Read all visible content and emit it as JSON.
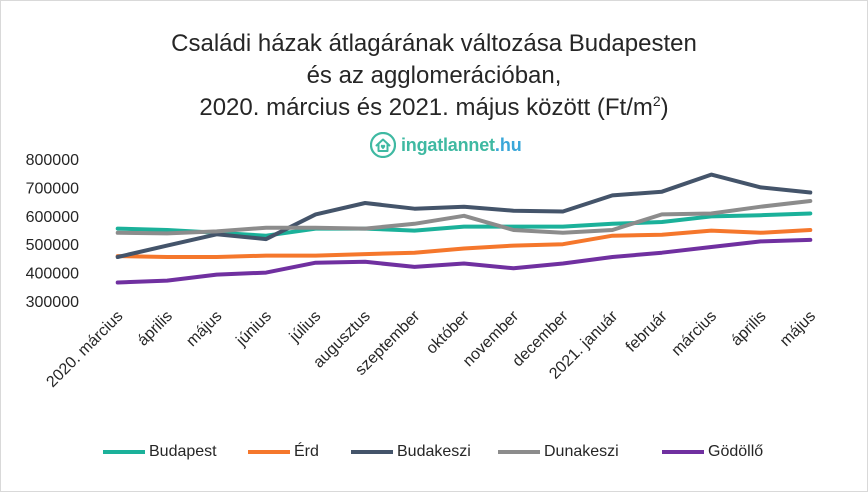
{
  "title": {
    "line1": "Családi házak átlagárának változása Budapesten",
    "line2": "és az agglomerációban,",
    "line3_main": "2020. március és 2021. május között (Ft/m",
    "line3_sup": "2",
    "line3_end": ")"
  },
  "brand": {
    "name": "ingatlannet",
    "tld": ".hu",
    "icon": "house-heart-icon",
    "color": "#3fb9a2"
  },
  "chart_data": {
    "type": "line",
    "title": "Családi házak átlagárának változása Budapesten és az agglomerációban, 2020. március és 2021. május között (Ft/m2)",
    "xlabel": "",
    "ylabel": "",
    "ylim": [
      300000,
      800000
    ],
    "yticks": [
      "800000",
      "700000",
      "600000",
      "500000",
      "400000",
      "300000"
    ],
    "yticks_values": [
      800000,
      700000,
      600000,
      500000,
      400000,
      300000
    ],
    "grid": false,
    "legend": "bottom",
    "categories": [
      "2020. március",
      "április",
      "május",
      "június",
      "július",
      "augusztus",
      "szeptember",
      "október",
      "november",
      "december",
      "2021. január",
      "február",
      "március",
      "április",
      "május"
    ],
    "series": [
      {
        "name": "Budapest",
        "color": "#1bb19a",
        "values": [
          555000,
          550000,
          540000,
          530000,
          555000,
          555000,
          548000,
          562000,
          562000,
          562000,
          572000,
          578000,
          598000,
          602000,
          608000
        ]
      },
      {
        "name": "Érd",
        "color": "#f5772c",
        "values": [
          458000,
          455000,
          455000,
          460000,
          460000,
          465000,
          470000,
          485000,
          495000,
          500000,
          530000,
          533000,
          548000,
          540000,
          550000
        ]
      },
      {
        "name": "Budakeszi",
        "color": "#44546a",
        "values": [
          455000,
          495000,
          535000,
          518000,
          605000,
          645000,
          625000,
          632000,
          618000,
          615000,
          672000,
          685000,
          745000,
          700000,
          682000
        ]
      },
      {
        "name": "Dunakeszi",
        "color": "#8c8c8c",
        "values": [
          540000,
          538000,
          545000,
          558000,
          558000,
          555000,
          572000,
          600000,
          550000,
          540000,
          550000,
          605000,
          608000,
          632000,
          652000
        ]
      },
      {
        "name": "Gödöllő",
        "color": "#7030a0",
        "values": [
          365000,
          372000,
          393000,
          400000,
          435000,
          438000,
          420000,
          432000,
          415000,
          432000,
          455000,
          470000,
          490000,
          510000,
          515000
        ]
      }
    ]
  }
}
